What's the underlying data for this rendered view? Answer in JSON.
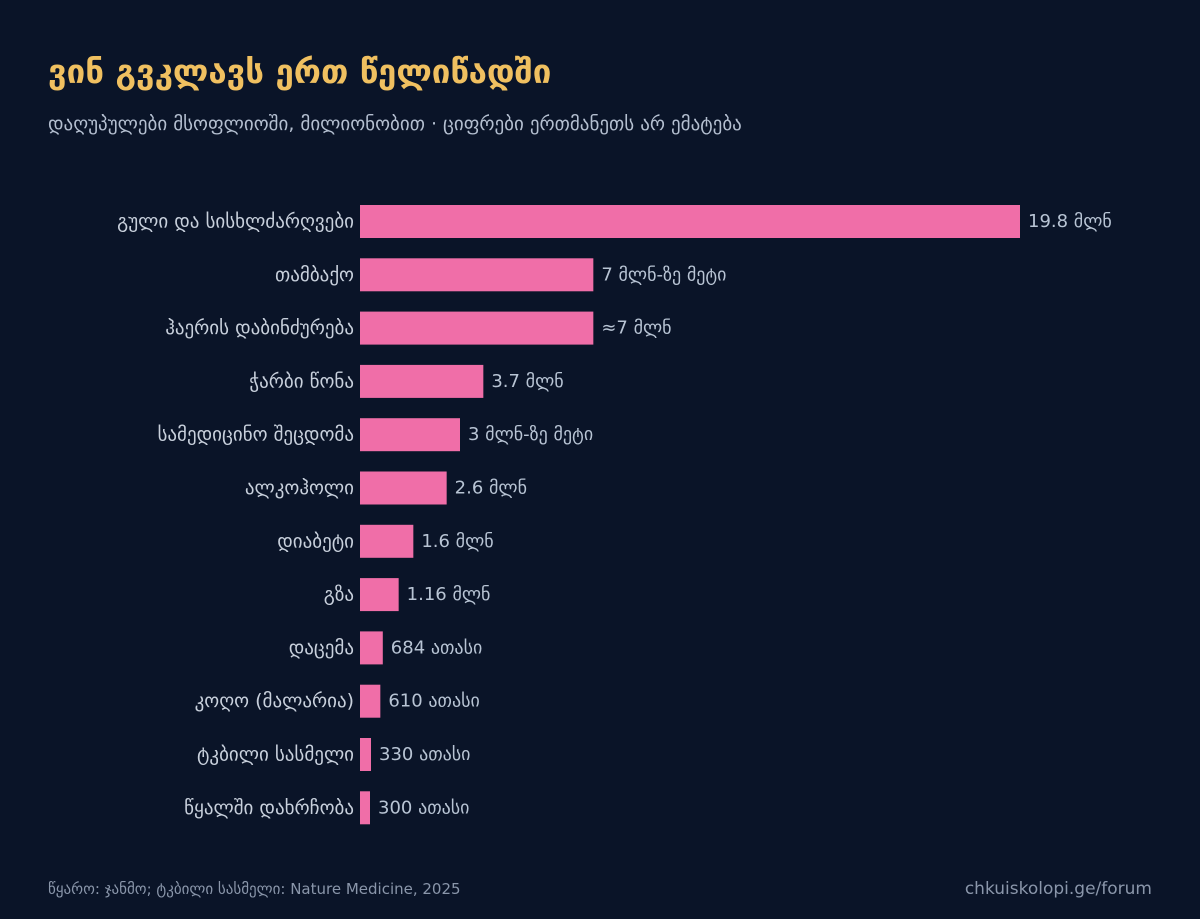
{
  "header": {
    "title": "ვინ გვკლავს ერთ წელიწადში",
    "subtitle": "დაღუპულები მსოფლიოში, მილიონობით · ციფრები ერთმანეთს არ ემატება"
  },
  "colors": {
    "background": "#0a1428",
    "bar": "#f06ea8",
    "title": "#f0c060",
    "label": "#c8d0dc",
    "value": "#b8c4d4",
    "muted": "#8a96aa"
  },
  "chart_data": {
    "type": "bar",
    "orientation": "horizontal",
    "xlim": [
      0,
      19.8
    ],
    "grid": false,
    "categories": [
      "გული და სისხლძარღვები",
      "თამბაქო",
      "ჰაერის დაბინძურება",
      "ჭარბი წონა",
      "სამედიცინო შეცდომა",
      "ალკოჰოლი",
      "დიაბეტი",
      "გზა",
      "დაცემა",
      "კოღო (მალარია)",
      "ტკბილი სასმელი",
      "წყალში დახრჩობა"
    ],
    "values": [
      19.8,
      7,
      7,
      3.7,
      3,
      2.6,
      1.6,
      1.16,
      0.684,
      0.61,
      0.33,
      0.3
    ],
    "value_labels": [
      "19.8 მლნ",
      "7 მლნ-ზე მეტი",
      "≈7 მლნ",
      "3.7 მლნ",
      "3 მლნ-ზე მეტი",
      "2.6 მლნ",
      "1.6 მლნ",
      "1.16 მლნ",
      "684 ათასი",
      "610 ათასი",
      "330 ათასი",
      "300 ათასი"
    ]
  },
  "footer": {
    "source": "წყარო: ჯანმო; ტკბილი სასმელი: Nature Medicine, 2025",
    "site": "chkuiskolopi.ge/forum"
  }
}
